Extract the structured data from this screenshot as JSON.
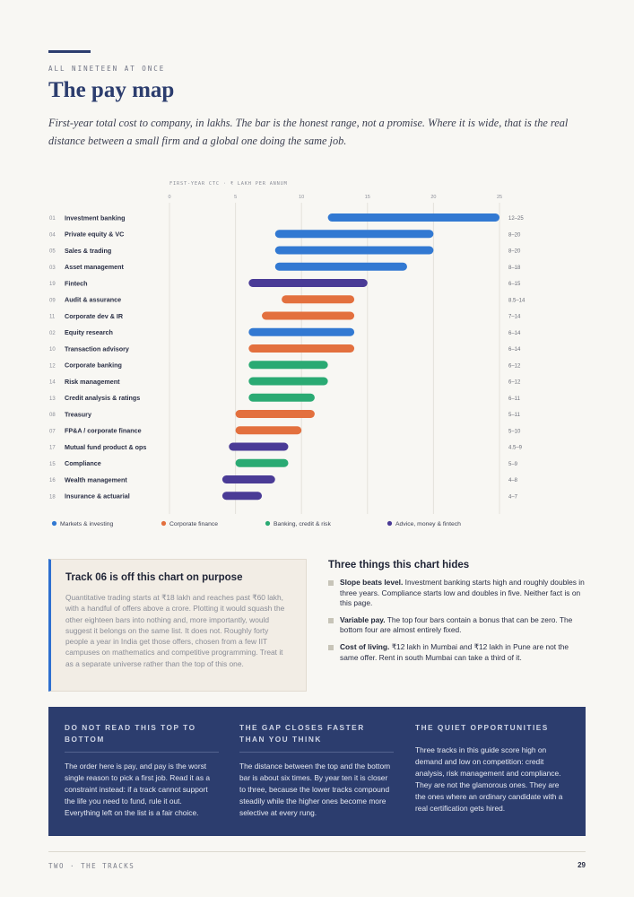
{
  "header": {
    "kicker": "ALL NINETEEN AT ONCE",
    "title": "The pay map",
    "intro": "First-year total cost to company, in lakhs. The bar is the honest range, not a promise. Where it is wide, that is the real distance between a small firm and a global one doing the same job."
  },
  "colors": {
    "markets": "#3279d2",
    "corporate": "#e3703e",
    "banking": "#2aaa73",
    "advice": "#4a3b96"
  },
  "chart_data": {
    "type": "bar",
    "orientation": "horizontal-range",
    "axis_title": "FIRST-YEAR CTC · ₹ LAKH PER ANNUM",
    "xlim": [
      0,
      25
    ],
    "ticks": [
      0,
      5,
      10,
      15,
      20,
      25
    ],
    "grid": true,
    "legend_position": "bottom",
    "legend": [
      {
        "name": "Markets & investing",
        "key": "markets"
      },
      {
        "name": "Corporate finance",
        "key": "corporate"
      },
      {
        "name": "Banking, credit & risk",
        "key": "banking"
      },
      {
        "name": "Advice, money & fintech",
        "key": "advice"
      }
    ],
    "rows": [
      {
        "num": "01",
        "name": "Investment banking",
        "lo": 12,
        "hi": 25,
        "label": "12–25",
        "group": "markets"
      },
      {
        "num": "04",
        "name": "Private equity & VC",
        "lo": 8,
        "hi": 20,
        "label": "8–20",
        "group": "markets"
      },
      {
        "num": "05",
        "name": "Sales & trading",
        "lo": 8,
        "hi": 20,
        "label": "8–20",
        "group": "markets"
      },
      {
        "num": "03",
        "name": "Asset management",
        "lo": 8,
        "hi": 18,
        "label": "8–18",
        "group": "markets"
      },
      {
        "num": "19",
        "name": "Fintech",
        "lo": 6,
        "hi": 15,
        "label": "6–15",
        "group": "advice"
      },
      {
        "num": "09",
        "name": "Audit & assurance",
        "lo": 8.5,
        "hi": 14,
        "label": "8.5–14",
        "group": "corporate"
      },
      {
        "num": "11",
        "name": "Corporate dev & IR",
        "lo": 7,
        "hi": 14,
        "label": "7–14",
        "group": "corporate"
      },
      {
        "num": "02",
        "name": "Equity research",
        "lo": 6,
        "hi": 14,
        "label": "6–14",
        "group": "markets"
      },
      {
        "num": "10",
        "name": "Transaction advisory",
        "lo": 6,
        "hi": 14,
        "label": "6–14",
        "group": "corporate"
      },
      {
        "num": "12",
        "name": "Corporate banking",
        "lo": 6,
        "hi": 12,
        "label": "6–12",
        "group": "banking"
      },
      {
        "num": "14",
        "name": "Risk management",
        "lo": 6,
        "hi": 12,
        "label": "6–12",
        "group": "banking"
      },
      {
        "num": "13",
        "name": "Credit analysis & ratings",
        "lo": 6,
        "hi": 11,
        "label": "6–11",
        "group": "banking"
      },
      {
        "num": "08",
        "name": "Treasury",
        "lo": 5,
        "hi": 11,
        "label": "5–11",
        "group": "corporate"
      },
      {
        "num": "07",
        "name": "FP&A / corporate finance",
        "lo": 5,
        "hi": 10,
        "label": "5–10",
        "group": "corporate"
      },
      {
        "num": "17",
        "name": "Mutual fund product & ops",
        "lo": 4.5,
        "hi": 9,
        "label": "4.5–9",
        "group": "advice"
      },
      {
        "num": "15",
        "name": "Compliance",
        "lo": 5,
        "hi": 9,
        "label": "5–9",
        "group": "banking"
      },
      {
        "num": "16",
        "name": "Wealth management",
        "lo": 4,
        "hi": 8,
        "label": "4–8",
        "group": "advice"
      },
      {
        "num": "18",
        "name": "Insurance & actuarial",
        "lo": 4,
        "hi": 7,
        "label": "4–7",
        "group": "advice"
      }
    ]
  },
  "track_box": {
    "title": "Track 06 is off this chart on purpose",
    "body": "Quantitative trading starts at ₹18 lakh and reaches past ₹60 lakh, with a handful of offers above a crore. Plotting it would squash the other eighteen bars into nothing and, more importantly, would suggest it belongs on the same list. It does not. Roughly forty people a year in India get those offers, chosen from a few IIT campuses on mathematics and competitive programming. Treat it as a separate universe rather than the top of this one."
  },
  "hides": {
    "title": "Three things this chart hides",
    "items": [
      {
        "lead": "Slope beats level.",
        "text": " Investment banking starts high and roughly doubles in three years. Compliance starts low and doubles in five. Neither fact is on this page."
      },
      {
        "lead": "Variable pay.",
        "text": " The top four bars contain a bonus that can be zero. The bottom four are almost entirely fixed."
      },
      {
        "lead": "Cost of living.",
        "text": " ₹12 lakh in Mumbai and ₹12 lakh in Pune are not the same offer. Rent in south Mumbai can take a third of it."
      }
    ]
  },
  "band": {
    "col1": {
      "title": "DO NOT READ THIS TOP TO BOTTOM",
      "body": "The order here is pay, and pay is the worst single reason to pick a first job. Read it as a constraint instead: if a track cannot support the life you need to fund, rule it out. Everything left on the list is a fair choice."
    },
    "col2": {
      "title": "THE GAP CLOSES FASTER THAN YOU THINK",
      "body": "The distance between the top and the bottom bar is about six times. By year ten it is closer to three, because the lower tracks compound steadily while the higher ones become more selective at every rung."
    },
    "col3": {
      "title": "THE QUIET OPPORTUNITIES",
      "body": "Three tracks in this guide score high on demand and low on competition: credit analysis, risk management and compliance. They are not the glamorous ones. They are the ones where an ordinary candidate with a real certification gets hired."
    }
  },
  "footer": {
    "left": "TWO · THE TRACKS",
    "page": "29"
  }
}
